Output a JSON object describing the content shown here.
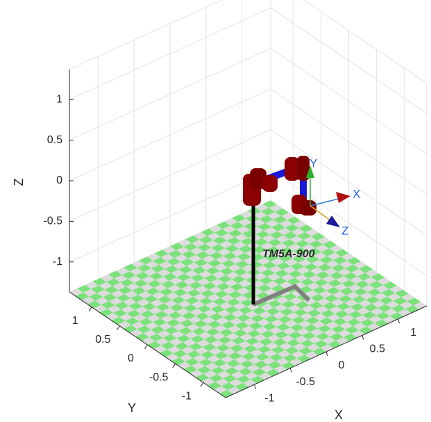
{
  "chart_data": {
    "type": "robot3d",
    "annotation": "TM5A-900",
    "frame_labels": [
      "X",
      "Y",
      "Z"
    ],
    "xlabel": "X",
    "ylabel": "Y",
    "zlabel": "Z",
    "xlim": [
      -1.4,
      1.4
    ],
    "ylim": [
      -1.4,
      1.4
    ],
    "zlim": [
      -1.37,
      1.37
    ],
    "xticks": [
      -1,
      -0.5,
      0,
      0.5,
      1
    ],
    "yticks": [
      -1,
      -0.5,
      0,
      0.5,
      1
    ],
    "zticks": [
      -1,
      -0.5,
      0,
      0.5,
      1
    ],
    "grid": true
  }
}
